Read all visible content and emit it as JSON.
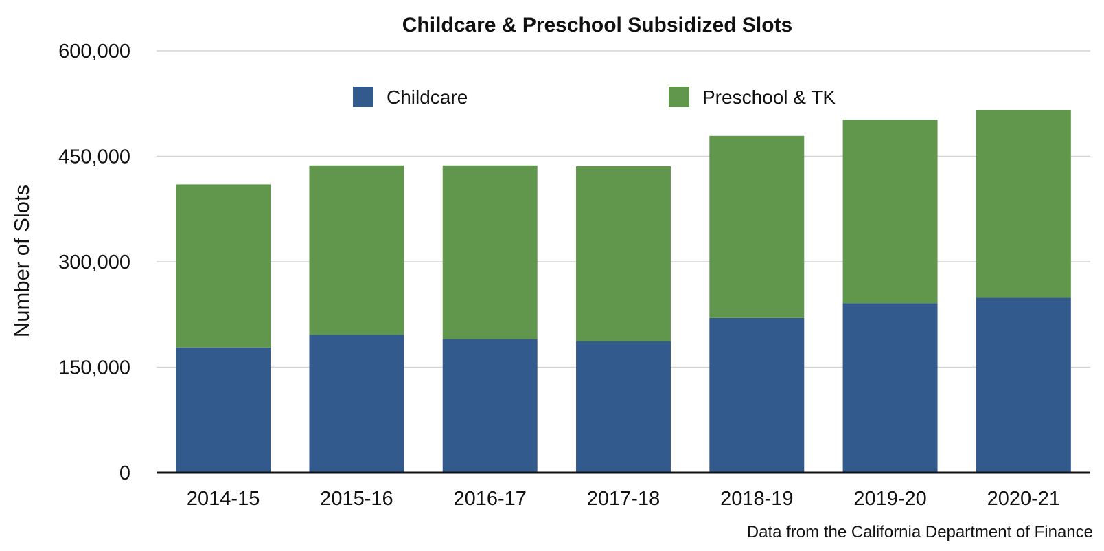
{
  "chart_data": {
    "type": "bar",
    "stacked": true,
    "title": "Childcare & Preschool Subsidized Slots",
    "ylabel": "Number of Slots",
    "xlabel": "",
    "source": "Data from the California Department of Finance",
    "categories": [
      "2014-15",
      "2015-16",
      "2016-17",
      "2017-18",
      "2018-19",
      "2019-20",
      "2020-21"
    ],
    "series": [
      {
        "name": "Childcare",
        "color": "#325a8c",
        "values": [
          178000,
          196000,
          190000,
          187000,
          220000,
          241000,
          249000
        ]
      },
      {
        "name": "Preschool & TK",
        "color": "#61964d",
        "values": [
          232000,
          241000,
          247000,
          249000,
          259000,
          261000,
          267000
        ]
      }
    ],
    "ylim": [
      0,
      600000
    ],
    "yticks": [
      0,
      150000,
      300000,
      450000,
      600000
    ],
    "ytick_labels": [
      "0",
      "150,000",
      "300,000",
      "450,000",
      "600,000"
    ],
    "grid": true,
    "legend_position": "top"
  }
}
